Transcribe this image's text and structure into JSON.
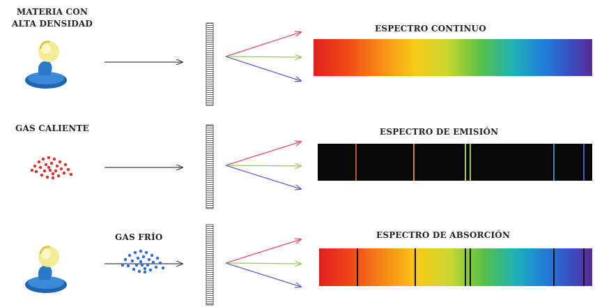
{
  "rows": [
    {
      "source_label_lines": [
        "MATERIA CON",
        "ALTA DENSIDAD"
      ],
      "spectrum_label": "ESPECTRO CONTINUO",
      "spectrum_type": "continuous"
    },
    {
      "source_label_lines": [
        "GAS CALIENTE"
      ],
      "spectrum_label": "ESPECTRO DE EMISIÓN",
      "spectrum_type": "emission",
      "line_colors": [
        "#c0503a",
        "#d08a2a",
        "#c2c83a",
        "#8fd04a",
        "#3a8ac8",
        "#4a5ad0"
      ]
    },
    {
      "source_label_lines": [],
      "gas_label": "GAS FRÍO",
      "spectrum_label": "ESPECTRO DE ABSORCIÓN",
      "spectrum_type": "absorption"
    }
  ],
  "colors": {
    "arrow_red": "#e0506a",
    "arrow_green": "#9ac860",
    "arrow_blue": "#5a60d8",
    "hot_gas_dots": "#d83030",
    "cold_gas_dots": "#2a6ad8",
    "lamp_base": "#2a7ac8",
    "bulb": "#f0e070"
  }
}
